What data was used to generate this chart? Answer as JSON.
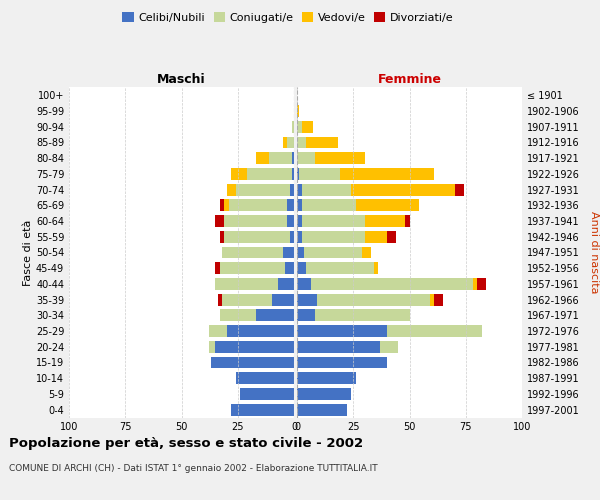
{
  "age_groups": [
    "0-4",
    "5-9",
    "10-14",
    "15-19",
    "20-24",
    "25-29",
    "30-34",
    "35-39",
    "40-44",
    "45-49",
    "50-54",
    "55-59",
    "60-64",
    "65-69",
    "70-74",
    "75-79",
    "80-84",
    "85-89",
    "90-94",
    "95-99",
    "100+"
  ],
  "birth_years": [
    "1997-2001",
    "1992-1996",
    "1987-1991",
    "1982-1986",
    "1977-1981",
    "1972-1976",
    "1967-1971",
    "1962-1966",
    "1957-1961",
    "1952-1956",
    "1947-1951",
    "1942-1946",
    "1937-1941",
    "1932-1936",
    "1927-1931",
    "1922-1926",
    "1917-1921",
    "1912-1916",
    "1907-1911",
    "1902-1906",
    "≤ 1901"
  ],
  "maschi": {
    "celibi": [
      28,
      24,
      26,
      37,
      35,
      30,
      17,
      10,
      7,
      4,
      5,
      2,
      3,
      3,
      2,
      1,
      1,
      0,
      0,
      0,
      0
    ],
    "coniugati": [
      0,
      0,
      0,
      0,
      3,
      8,
      16,
      22,
      28,
      29,
      27,
      29,
      28,
      26,
      24,
      20,
      10,
      3,
      1,
      0,
      0
    ],
    "vedovi": [
      0,
      0,
      0,
      0,
      0,
      0,
      0,
      0,
      0,
      0,
      0,
      0,
      0,
      2,
      4,
      7,
      6,
      2,
      0,
      0,
      0
    ],
    "divorziati": [
      0,
      0,
      0,
      0,
      0,
      0,
      0,
      2,
      0,
      2,
      0,
      2,
      4,
      2,
      0,
      0,
      0,
      0,
      0,
      0,
      0
    ]
  },
  "femmine": {
    "nubili": [
      22,
      24,
      26,
      40,
      37,
      40,
      8,
      9,
      6,
      4,
      3,
      2,
      2,
      2,
      2,
      1,
      0,
      0,
      0,
      0,
      0
    ],
    "coniugate": [
      0,
      0,
      0,
      0,
      8,
      42,
      42,
      50,
      72,
      30,
      26,
      28,
      28,
      24,
      22,
      18,
      8,
      4,
      2,
      0,
      0
    ],
    "vedove": [
      0,
      0,
      0,
      0,
      0,
      0,
      0,
      2,
      2,
      2,
      4,
      10,
      18,
      28,
      46,
      42,
      22,
      14,
      5,
      1,
      0
    ],
    "divorziate": [
      0,
      0,
      0,
      0,
      0,
      0,
      0,
      4,
      4,
      0,
      0,
      4,
      2,
      0,
      4,
      0,
      0,
      0,
      0,
      0,
      0
    ]
  },
  "colors": {
    "celibi": "#4472c4",
    "coniugati": "#c6d89a",
    "vedovi": "#ffc000",
    "divorziati": "#c00000"
  },
  "xlim": 100,
  "title": "Popolazione per età, sesso e stato civile - 2002",
  "subtitle": "COMUNE DI ARCHI (CH) - Dati ISTAT 1° gennaio 2002 - Elaborazione TUTTITALIA.IT",
  "ylabel_left": "Fasce di età",
  "ylabel_right": "Anni di nascita",
  "label_maschi": "Maschi",
  "label_femmine": "Femmine",
  "legend_labels": [
    "Celibi/Nubili",
    "Coniugati/e",
    "Vedovi/e",
    "Divorziati/e"
  ],
  "bg_color": "#f0f0f0"
}
